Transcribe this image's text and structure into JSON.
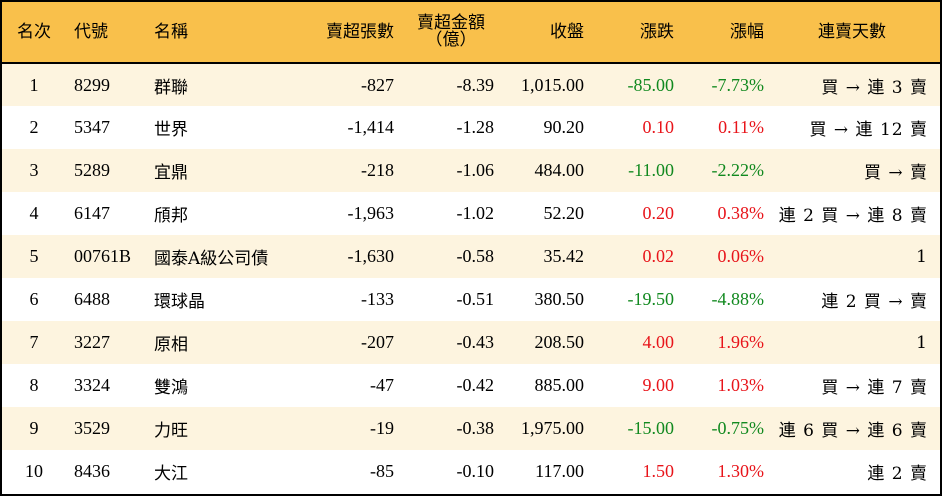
{
  "headers": {
    "rank": "名次",
    "code": "代號",
    "name": "名稱",
    "net_sell_lots": "賣超張數",
    "net_sell_amount_line1": "賣超金額",
    "net_sell_amount_line2": "（億）",
    "close": "收盤",
    "change": "漲跌",
    "change_pct": "漲幅",
    "streak": "連賣天數"
  },
  "colors": {
    "header_bg": "#f9c04b",
    "row_alt_bg": "#fdf4df",
    "up": "#e8141a",
    "down": "#11891f"
  },
  "rows": [
    {
      "rank": "1",
      "code": "8299",
      "name": "群聯",
      "lots": "-827",
      "amount": "-8.39",
      "close": "1,015.00",
      "change": "-85.00",
      "pct": "-7.73%",
      "dir": "down",
      "streak": "買 → 連 3 賣"
    },
    {
      "rank": "2",
      "code": "5347",
      "name": "世界",
      "lots": "-1,414",
      "amount": "-1.28",
      "close": "90.20",
      "change": "0.10",
      "pct": "0.11%",
      "dir": "up",
      "streak": "買 → 連 12 賣"
    },
    {
      "rank": "3",
      "code": "5289",
      "name": "宜鼎",
      "lots": "-218",
      "amount": "-1.06",
      "close": "484.00",
      "change": "-11.00",
      "pct": "-2.22%",
      "dir": "down",
      "streak": "買 → 賣"
    },
    {
      "rank": "4",
      "code": "6147",
      "name": "頎邦",
      "lots": "-1,963",
      "amount": "-1.02",
      "close": "52.20",
      "change": "0.20",
      "pct": "0.38%",
      "dir": "up",
      "streak": "連 2 買 → 連 8 賣"
    },
    {
      "rank": "5",
      "code": "00761B",
      "name": "國泰A級公司債",
      "lots": "-1,630",
      "amount": "-0.58",
      "close": "35.42",
      "change": "0.02",
      "pct": "0.06%",
      "dir": "up",
      "streak": "1"
    },
    {
      "rank": "6",
      "code": "6488",
      "name": "環球晶",
      "lots": "-133",
      "amount": "-0.51",
      "close": "380.50",
      "change": "-19.50",
      "pct": "-4.88%",
      "dir": "down",
      "streak": "連 2 買 → 賣"
    },
    {
      "rank": "7",
      "code": "3227",
      "name": "原相",
      "lots": "-207",
      "amount": "-0.43",
      "close": "208.50",
      "change": "4.00",
      "pct": "1.96%",
      "dir": "up",
      "streak": "1"
    },
    {
      "rank": "8",
      "code": "3324",
      "name": "雙鴻",
      "lots": "-47",
      "amount": "-0.42",
      "close": "885.00",
      "change": "9.00",
      "pct": "1.03%",
      "dir": "up",
      "streak": "買 → 連 7 賣"
    },
    {
      "rank": "9",
      "code": "3529",
      "name": "力旺",
      "lots": "-19",
      "amount": "-0.38",
      "close": "1,975.00",
      "change": "-15.00",
      "pct": "-0.75%",
      "dir": "down",
      "streak": "連 6 買 → 連 6 賣"
    },
    {
      "rank": "10",
      "code": "8436",
      "name": "大江",
      "lots": "-85",
      "amount": "-0.10",
      "close": "117.00",
      "change": "1.50",
      "pct": "1.30%",
      "dir": "up",
      "streak": "連 2 賣"
    }
  ]
}
